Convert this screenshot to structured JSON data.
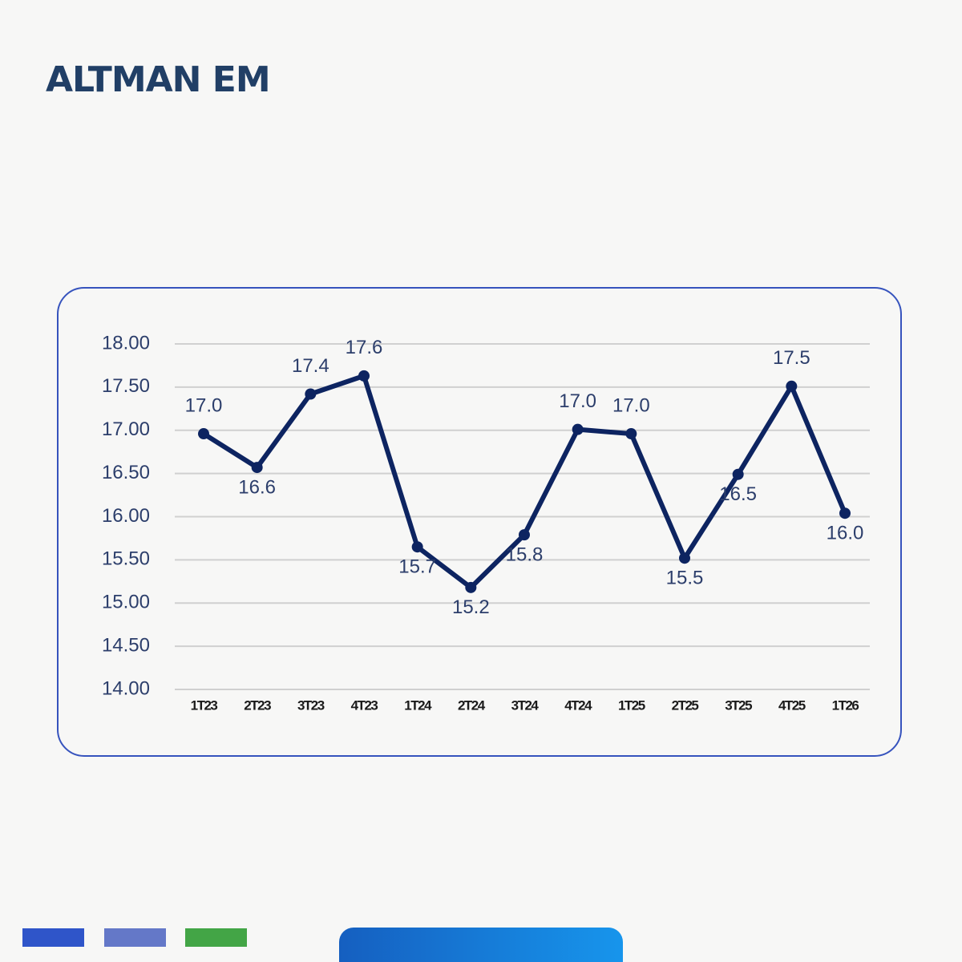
{
  "header": {
    "title": "ALTMAN EM"
  },
  "chart_data": {
    "type": "line",
    "categories": [
      "1T23",
      "2T23",
      "3T23",
      "4T23",
      "1T24",
      "2T24",
      "3T24",
      "4T24",
      "1T25",
      "2T25",
      "3T25",
      "4T25",
      "1T26"
    ],
    "series": [
      {
        "color": "#0d2461",
        "values": [
          16.96,
          16.57,
          17.42,
          17.63,
          15.65,
          15.18,
          15.79,
          17.01,
          16.96,
          15.52,
          16.49,
          17.51,
          16.04
        ],
        "value_labels": [
          "17.0",
          "16.6",
          "17.4",
          "17.6",
          "15.7",
          "15.2",
          "15.8",
          "17.0",
          "17.0",
          "15.5",
          "16.5",
          "17.5",
          "16.0"
        ]
      }
    ],
    "ylim": [
      14,
      18
    ],
    "yticks": [
      {
        "value": 14,
        "label": "14.00"
      },
      {
        "value": 14.5,
        "label": "14.50"
      },
      {
        "value": 15,
        "label": "15.00"
      },
      {
        "value": 15.5,
        "label": "15.50"
      },
      {
        "value": 16,
        "label": "16.00"
      },
      {
        "value": 16.5,
        "label": "16.50"
      },
      {
        "value": 17,
        "label": "17.00"
      },
      {
        "value": 17.5,
        "label": "17.50"
      },
      {
        "value": 18,
        "label": "18.00"
      }
    ],
    "grid": true
  }
}
